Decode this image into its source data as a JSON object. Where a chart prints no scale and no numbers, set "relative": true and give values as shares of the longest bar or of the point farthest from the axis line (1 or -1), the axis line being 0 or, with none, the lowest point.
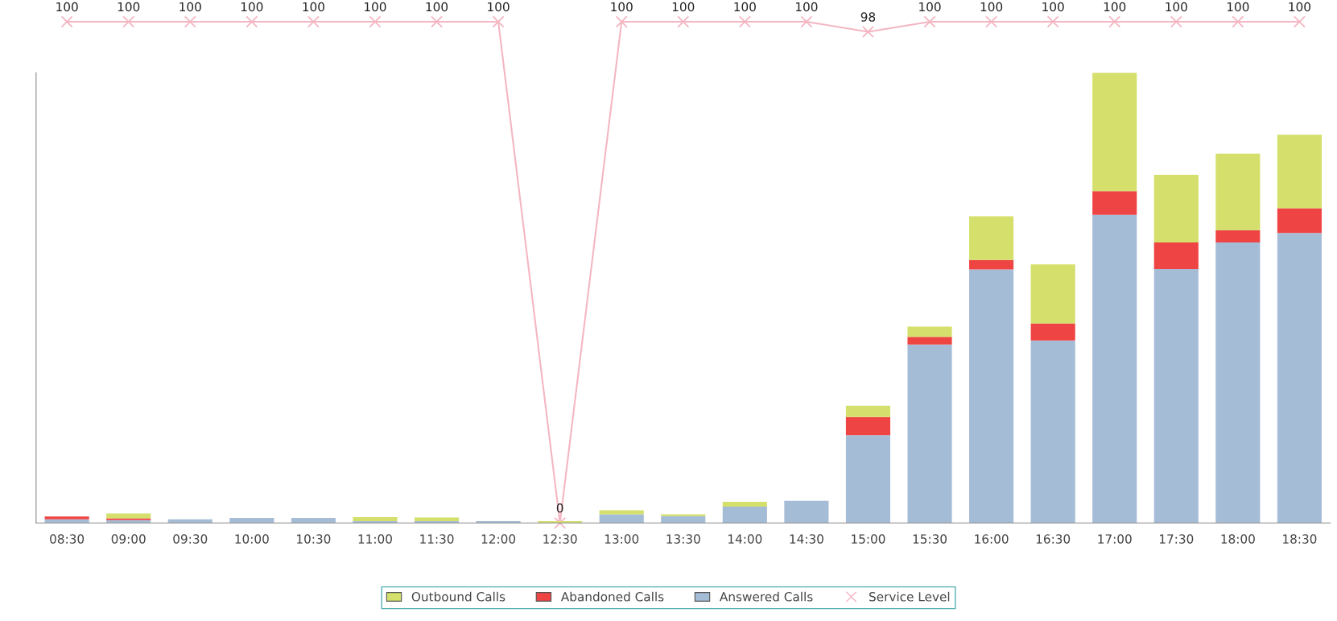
{
  "chart_data": [
    {
      "type": "line",
      "legend": "bottom",
      "categories": [
        null,
        null,
        null,
        null,
        null,
        null,
        null,
        null,
        null,
        null,
        null,
        null,
        null,
        null,
        null,
        null,
        null,
        null,
        null,
        null,
        null
      ],
      "tick_labels": false,
      "series": [
        {
          "name": "Service Level",
          "color": "#f4b6c2",
          "marker": "cross",
          "values": [
            100,
            100,
            100,
            100,
            100,
            100,
            100,
            100,
            0,
            100,
            100,
            100,
            100,
            98,
            100,
            100,
            100,
            100,
            100,
            100,
            100
          ],
          "value_labels": [
            "100",
            "100",
            "100",
            "100",
            "100",
            "100",
            "100",
            "100",
            "0",
            "100",
            "100",
            "100",
            "100",
            "98",
            "100",
            "100",
            "100",
            "100",
            "100",
            "100",
            "100"
          ]
        }
      ]
    },
    {
      "type": "bar",
      "stacked": true,
      "relative": true,
      "legend": "bottom",
      "tick_labels": "x",
      "categories": [
        "08:30",
        "09:00",
        "09:30",
        "10:00",
        "10:30",
        "11:00",
        "11:30",
        "12:00",
        "12:30",
        "13:00",
        "13:30",
        "14:00",
        "14:30",
        "15:00",
        "15:30",
        "16:00",
        "16:30",
        "17:00",
        "17:30",
        "18:00",
        "18:30"
      ],
      "series": [
        {
          "name": "Answered Calls",
          "color": "#a5bcd6",
          "values": [
            0.008,
            0.006,
            0.008,
            0.011,
            0.011,
            0.004,
            0.004,
            0.004,
            0,
            0.019,
            0.015,
            0.036,
            0.049,
            0.195,
            0.396,
            0.563,
            0.405,
            0.684,
            0.564,
            0.623,
            0.644
          ]
        },
        {
          "name": "Abandoned Calls",
          "color": "#ef4444",
          "values": [
            0.006,
            0.004,
            0,
            0,
            0,
            0,
            0,
            0,
            0,
            0,
            0,
            0,
            0,
            0.04,
            0.017,
            0.021,
            0.038,
            0.053,
            0.059,
            0.027,
            0.055
          ]
        },
        {
          "name": "Outbound Calls",
          "color": "#d4e06b",
          "values": [
            0,
            0.011,
            0,
            0,
            0,
            0.009,
            0.008,
            0,
            0.004,
            0.009,
            0.004,
            0.011,
            0,
            0.025,
            0.023,
            0.097,
            0.131,
            0.263,
            0.15,
            0.17,
            0.163
          ]
        }
      ]
    }
  ]
}
